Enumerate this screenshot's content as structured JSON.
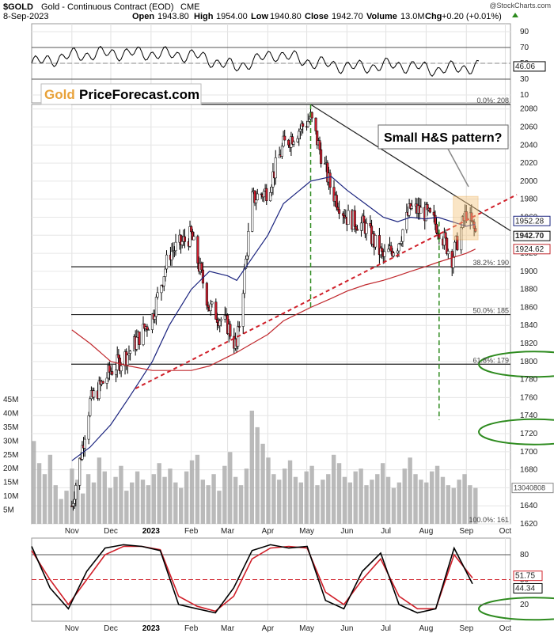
{
  "header": {
    "symbol": "$GOLD",
    "name": "Gold - Continuous Contract (EOD)",
    "exchange": "CME",
    "date": "8-Sep-2023",
    "open_label": "Open",
    "open": "1943.80",
    "high_label": "High",
    "high": "1954.00",
    "low_label": "Low",
    "low": "1940.80",
    "close_label": "Close",
    "close": "1942.70",
    "volume_label": "Volume",
    "volume": "13.0M",
    "chg_label": "Chg",
    "chg": "+0.20 (+0.01%)",
    "watermark": "@StockCharts.com"
  },
  "logo": {
    "part1": "Gold",
    "part2": "PriceForecast.com"
  },
  "annotation": {
    "pattern_text": "Small H&S pattern?"
  },
  "colors": {
    "up_candle": "#ffffff",
    "down_candle": "#cc1f2f",
    "ma50": "#1a237e",
    "ma200": "#c0282d",
    "trendline": "#d0202a",
    "green_marker": "#2e8b1f",
    "volume_bar": "#a9a9a9",
    "highlight_box": "#f6c680"
  },
  "chart_data": [
    {
      "type": "line",
      "name": "rsi_panel",
      "y_ticks": [
        "90",
        "70",
        "50",
        "30",
        "10"
      ],
      "ylim": [
        0,
        100
      ],
      "reference_lines": [
        70,
        50,
        30
      ],
      "last_value_label": "46.06",
      "x": [
        "Oct",
        "Nov",
        "Dec",
        "Jan",
        "Feb",
        "Mar",
        "Apr",
        "May",
        "Jun",
        "Jul",
        "Aug",
        "Sep"
      ],
      "values": [
        50,
        60,
        63,
        62,
        60,
        45,
        62,
        50,
        45,
        48,
        42,
        46
      ]
    },
    {
      "type": "line",
      "name": "price_panel",
      "y_ticks": [
        "2080",
        "2060",
        "2040",
        "2020",
        "2000",
        "1980",
        "1960",
        "1940",
        "1920",
        "1900",
        "1880",
        "1860",
        "1840",
        "1820",
        "1800",
        "1780",
        "1760",
        "1740",
        "1720",
        "1700",
        "1680",
        "1660",
        "1640",
        "1620"
      ],
      "ylim": [
        1620,
        2085
      ],
      "x_ticks": [
        "Nov",
        "Dec",
        "2023",
        "Feb",
        "Mar",
        "Apr",
        "May",
        "Jun",
        "Jul",
        "Aug",
        "Sep",
        "Oct"
      ],
      "price_labels": [
        "1952.28",
        "1942.70",
        "1924.62"
      ],
      "fib_labels": [
        "0.0%: 208",
        "38.2%: 190",
        "50.0%: 185",
        "61.8%: 179",
        "100.0%: 161"
      ],
      "horizontal_levels": [
        2085,
        1905,
        1852,
        1797
      ],
      "close_series": {
        "dates": [
          "2022-11-01",
          "2022-11-15",
          "2022-12-01",
          "2022-12-15",
          "2023-01-02",
          "2023-01-15",
          "2023-02-01",
          "2023-02-15",
          "2023-03-01",
          "2023-03-08",
          "2023-03-20",
          "2023-04-01",
          "2023-04-13",
          "2023-05-04",
          "2023-05-20",
          "2023-06-01",
          "2023-06-15",
          "2023-06-29",
          "2023-07-10",
          "2023-07-20",
          "2023-07-31",
          "2023-08-10",
          "2023-08-21",
          "2023-09-01",
          "2023-09-08"
        ],
        "values": [
          1640,
          1755,
          1790,
          1810,
          1850,
          1920,
          1940,
          1860,
          1840,
          1815,
          1980,
          1990,
          2040,
          2070,
          1990,
          1960,
          1950,
          1915,
          1930,
          1970,
          1965,
          1950,
          1915,
          1965,
          1942.7
        ]
      },
      "ma50": [
        1690,
        1705,
        1730,
        1760,
        1800,
        1840,
        1880,
        1900,
        1895,
        1890,
        1915,
        1940,
        1975,
        2000,
        2005,
        1990,
        1975,
        1960,
        1955,
        1960,
        1958,
        1960,
        1955,
        1950,
        1952.28
      ],
      "ma200": [
        1835,
        1820,
        1800,
        1795,
        1790,
        1790,
        1790,
        1795,
        1805,
        1810,
        1820,
        1830,
        1845,
        1860,
        1870,
        1878,
        1885,
        1890,
        1895,
        1900,
        1905,
        1910,
        1915,
        1920,
        1924.62
      ]
    },
    {
      "type": "bar",
      "name": "volume_panel",
      "y_ticks": [
        "45M",
        "40M",
        "35M",
        "30M",
        "25M",
        "20M",
        "15M",
        "10M",
        "5M"
      ],
      "ylim": [
        0,
        45
      ],
      "last_value_label": "13040808",
      "values": [
        30,
        22,
        18,
        25,
        14,
        9,
        12,
        20,
        16,
        11,
        18,
        15,
        24,
        19,
        13,
        17,
        21,
        12,
        15,
        19,
        16,
        14,
        18,
        22,
        17,
        20,
        15,
        13,
        19,
        23,
        25,
        16,
        14,
        18,
        12,
        21,
        26,
        17,
        14,
        20,
        41,
        35,
        29,
        24,
        18,
        16,
        20,
        23,
        17,
        15,
        19,
        21,
        14,
        16,
        18,
        25,
        22,
        17,
        15,
        19,
        20,
        14,
        16,
        18,
        22,
        17,
        13,
        15,
        20,
        24,
        18,
        16,
        15,
        19,
        21,
        17,
        14,
        13,
        16,
        18,
        14,
        13
      ]
    },
    {
      "type": "line",
      "name": "stochastic_panel",
      "y_ticks": [
        "80",
        "50",
        "20"
      ],
      "ylim": [
        0,
        100
      ],
      "last_value_labels": [
        "51.75",
        "44.34"
      ],
      "k_values": [
        90,
        40,
        15,
        60,
        88,
        92,
        90,
        85,
        20,
        15,
        10,
        40,
        85,
        92,
        88,
        90,
        25,
        15,
        60,
        82,
        20,
        10,
        15,
        88,
        45
      ],
      "d_values": [
        85,
        50,
        20,
        50,
        80,
        90,
        90,
        86,
        30,
        18,
        12,
        30,
        75,
        88,
        90,
        88,
        35,
        20,
        50,
        75,
        30,
        15,
        15,
        80,
        52
      ]
    }
  ]
}
